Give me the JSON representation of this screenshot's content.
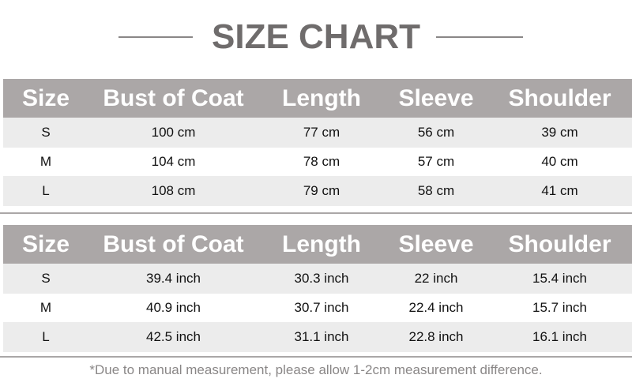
{
  "title": "SIZE CHART",
  "headers": [
    "Size",
    "Bust of Coat",
    "Length",
    "Sleeve",
    "Shoulder"
  ],
  "cm_table": [
    [
      "S",
      "100 cm",
      "77 cm",
      "56 cm",
      "39 cm"
    ],
    [
      "M",
      "104 cm",
      "78 cm",
      "57 cm",
      "40 cm"
    ],
    [
      "L",
      "108 cm",
      "79 cm",
      "58 cm",
      "41 cm"
    ]
  ],
  "inch_table": [
    [
      "S",
      "39.4 inch",
      "30.3 inch",
      "22 inch",
      "15.4 inch"
    ],
    [
      "M",
      "40.9 inch",
      "30.7 inch",
      "22.4 inch",
      "15.7 inch"
    ],
    [
      "L",
      "42.5 inch",
      "31.1 inch",
      "22.8 inch",
      "16.1 inch"
    ]
  ],
  "note": "*Due to manual measurement, please allow 1-2cm measurement difference.",
  "colors": {
    "header_bg": "#aba7a7",
    "stripe": "#ececec",
    "title": "#6f6c6c"
  }
}
